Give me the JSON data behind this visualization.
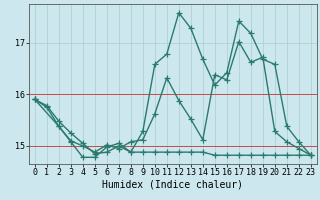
{
  "title": "",
  "xlabel": "Humidex (Indice chaleur)",
  "xlim": [
    -0.5,
    23.5
  ],
  "ylim": [
    14.65,
    17.75
  ],
  "yticks": [
    15,
    16,
    17
  ],
  "xticks": [
    0,
    1,
    2,
    3,
    4,
    5,
    6,
    7,
    8,
    9,
    10,
    11,
    12,
    13,
    14,
    15,
    16,
    17,
    18,
    19,
    20,
    21,
    22,
    23
  ],
  "background_color": "#cce8ee",
  "grid_color": "#aacccc",
  "line_color": "#2a7a6e",
  "red_lines": [
    15,
    16
  ],
  "lines": [
    {
      "x": [
        0,
        1,
        2,
        3,
        4,
        5,
        6,
        7,
        8,
        9,
        10,
        11,
        12,
        13,
        14,
        15,
        16,
        17,
        18,
        19,
        20,
        21,
        22,
        23
      ],
      "y": [
        15.9,
        15.78,
        15.48,
        15.25,
        15.05,
        14.85,
        14.88,
        15.0,
        14.88,
        14.88,
        14.88,
        14.88,
        14.88,
        14.88,
        14.88,
        14.82,
        14.82,
        14.82,
        14.82,
        14.82,
        14.82,
        14.82,
        14.82,
        14.82
      ]
    },
    {
      "x": [
        0,
        1,
        2,
        3,
        4,
        5,
        6,
        7,
        8,
        9,
        10,
        11,
        12,
        13,
        14,
        15,
        16,
        17,
        18,
        19,
        20,
        21,
        22,
        23
      ],
      "y": [
        15.9,
        15.75,
        15.38,
        15.1,
        15.0,
        14.88,
        15.02,
        14.95,
        15.08,
        15.12,
        15.62,
        16.32,
        15.88,
        15.52,
        15.12,
        16.38,
        16.28,
        17.02,
        16.62,
        16.72,
        15.28,
        15.08,
        14.95,
        14.82
      ]
    },
    {
      "x": [
        0,
        2,
        3,
        4,
        5,
        6,
        7,
        8,
        9,
        10,
        11,
        12,
        13,
        14,
        15,
        16,
        17,
        18,
        19,
        20,
        21,
        22,
        23
      ],
      "y": [
        15.9,
        15.38,
        15.08,
        14.78,
        14.78,
        14.98,
        15.05,
        14.88,
        15.28,
        16.58,
        16.78,
        17.58,
        17.28,
        16.68,
        16.18,
        16.42,
        17.42,
        17.18,
        16.68,
        16.58,
        15.38,
        15.08,
        14.82
      ]
    }
  ],
  "marker": "+",
  "markersize": 4,
  "linewidth": 1.0,
  "tick_fontsize": 6,
  "label_fontsize": 7
}
